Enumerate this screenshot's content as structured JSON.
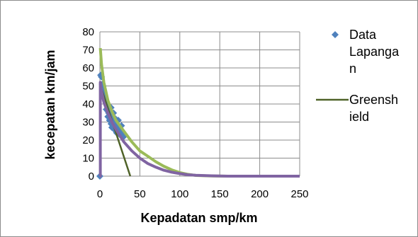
{
  "chart_data": {
    "type": "scatter",
    "title": "",
    "xlabel": "Kepadatan smp/km",
    "ylabel": "kecepatan km/jam",
    "xlim": [
      0,
      250
    ],
    "ylim": [
      0,
      80
    ],
    "x_ticks": [
      0,
      50,
      100,
      150,
      200,
      250
    ],
    "y_ticks": [
      0,
      10,
      20,
      30,
      40,
      50,
      60,
      70,
      80
    ],
    "grid": true,
    "legend_position": "right",
    "legend": [
      {
        "label_lines": [
          "Data",
          "Lapanga",
          "n"
        ],
        "marker": "diamond",
        "color": "#4f81bd"
      },
      {
        "label_lines": [
          "Greensh",
          "ield"
        ],
        "marker": "line",
        "color": "#4f6228"
      }
    ],
    "series": [
      {
        "name": "Data Lapangan",
        "kind": "scatter",
        "color": "#4f81bd",
        "points": [
          [
            0,
            0
          ],
          [
            1,
            56
          ],
          [
            2,
            55
          ],
          [
            3,
            51
          ],
          [
            4,
            50
          ],
          [
            5,
            47
          ],
          [
            6,
            44
          ],
          [
            7,
            42
          ],
          [
            8,
            41
          ],
          [
            8,
            37
          ],
          [
            9,
            39
          ],
          [
            10,
            36
          ],
          [
            10,
            33
          ],
          [
            11,
            35
          ],
          [
            12,
            31
          ],
          [
            13,
            34
          ],
          [
            14,
            38
          ],
          [
            14,
            29
          ],
          [
            15,
            33
          ],
          [
            15,
            27
          ],
          [
            16,
            30
          ],
          [
            17,
            35
          ],
          [
            18,
            28
          ],
          [
            18,
            26
          ],
          [
            19,
            32
          ],
          [
            20,
            25
          ],
          [
            20,
            29
          ],
          [
            21,
            24
          ],
          [
            22,
            27
          ],
          [
            23,
            31
          ],
          [
            24,
            26
          ],
          [
            25,
            23
          ],
          [
            26,
            25
          ],
          [
            27,
            28
          ],
          [
            28,
            24
          ],
          [
            30,
            22
          ]
        ]
      },
      {
        "name": "Greenshield",
        "kind": "line",
        "color": "#4f6228",
        "points": [
          [
            0,
            51
          ],
          [
            38,
            0
          ]
        ]
      },
      {
        "name": "",
        "kind": "line",
        "color": "#9bbb59",
        "points": [
          [
            0.5,
            71
          ],
          [
            2,
            62
          ],
          [
            5,
            52
          ],
          [
            10,
            42
          ],
          [
            15,
            36
          ],
          [
            20,
            31
          ],
          [
            30,
            25
          ],
          [
            40,
            19
          ],
          [
            50,
            14
          ],
          [
            60,
            11
          ],
          [
            70,
            8
          ],
          [
            80,
            5.5
          ],
          [
            90,
            3.5
          ],
          [
            100,
            2
          ],
          [
            110,
            1
          ],
          [
            120,
            0.4
          ],
          [
            140,
            0.1
          ],
          [
            160,
            0
          ],
          [
            250,
            0
          ]
        ]
      },
      {
        "name": "",
        "kind": "line",
        "color": "#8064a2",
        "points": [
          [
            0,
            0
          ],
          [
            0.5,
            0
          ],
          [
            0.5,
            52
          ],
          [
            1,
            50
          ],
          [
            2,
            47
          ],
          [
            5,
            41
          ],
          [
            10,
            35
          ],
          [
            15,
            30
          ],
          [
            20,
            26
          ],
          [
            30,
            19
          ],
          [
            40,
            14
          ],
          [
            50,
            10
          ],
          [
            60,
            7
          ],
          [
            70,
            5
          ],
          [
            80,
            3.3
          ],
          [
            90,
            2.2
          ],
          [
            100,
            1.4
          ],
          [
            110,
            0.8
          ],
          [
            120,
            0.5
          ],
          [
            140,
            0.2
          ],
          [
            160,
            0
          ],
          [
            250,
            0
          ]
        ]
      }
    ]
  }
}
